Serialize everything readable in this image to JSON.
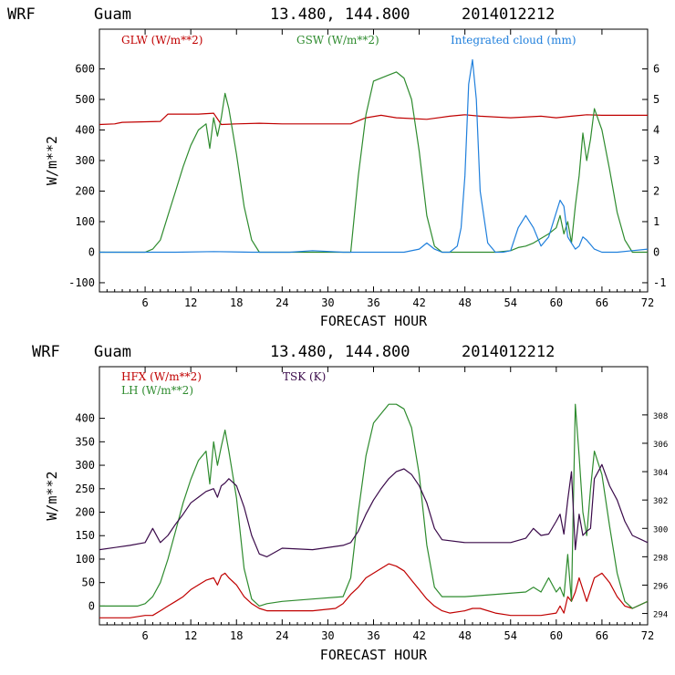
{
  "header": {
    "model": "WRF",
    "location": "Guam",
    "coords": "13.480, 144.800",
    "init": "2014012212"
  },
  "colors": {
    "red": "#c00000",
    "green": "#2e8b2e",
    "blue": "#1f7fdc",
    "purple": "#3a0a4a",
    "black": "#000000"
  },
  "chart_data": [
    {
      "type": "line",
      "title": "WRF Guam 13.480, 144.800 2014012212",
      "xlabel": "FORECAST HOUR",
      "ylabel": "W/m**2",
      "xlim": [
        0,
        72
      ],
      "ylim": [
        -130,
        730
      ],
      "y2lim": [
        -1.3,
        7.3
      ],
      "xticks": [
        6,
        12,
        18,
        24,
        30,
        36,
        42,
        48,
        54,
        60,
        66,
        72
      ],
      "yticks": [
        -100,
        0,
        100,
        200,
        300,
        400,
        500,
        600
      ],
      "y2ticks": [
        -1,
        0,
        1,
        2,
        3,
        4,
        5,
        6
      ],
      "series": [
        {
          "name": "GLW (W/m**2)",
          "color": "#c00000",
          "axis": "left",
          "x": [
            0,
            2,
            3,
            8,
            9,
            13,
            15,
            16,
            18,
            21,
            24,
            30,
            33,
            35,
            37,
            39,
            43,
            46,
            48,
            50,
            54,
            58,
            60,
            62,
            64,
            66,
            72
          ],
          "y": [
            418,
            420,
            425,
            428,
            452,
            452,
            455,
            418,
            420,
            422,
            420,
            420,
            420,
            440,
            448,
            440,
            435,
            445,
            450,
            445,
            440,
            445,
            440,
            445,
            450,
            448,
            448
          ]
        },
        {
          "name": "GSW (W/m**2)",
          "color": "#2e8b2e",
          "axis": "left",
          "x": [
            0,
            6,
            7,
            8,
            9,
            10,
            11,
            12,
            13,
            14,
            14.5,
            15,
            15.5,
            16,
            16.5,
            17,
            18,
            19,
            20,
            21,
            24,
            30,
            32,
            33,
            34,
            35,
            36,
            37,
            38,
            39,
            40,
            41,
            42,
            43,
            44,
            45,
            48,
            52,
            54,
            55,
            56,
            57,
            58,
            59,
            60,
            60.5,
            61,
            61.5,
            62,
            62.5,
            63,
            63.5,
            64,
            64.5,
            65,
            66,
            67,
            68,
            69,
            70,
            72
          ],
          "y": [
            0,
            0,
            10,
            40,
            120,
            200,
            280,
            350,
            400,
            420,
            340,
            440,
            380,
            440,
            520,
            470,
            320,
            150,
            40,
            0,
            0,
            0,
            0,
            0,
            250,
            450,
            560,
            570,
            580,
            590,
            570,
            500,
            330,
            120,
            20,
            0,
            0,
            0,
            5,
            15,
            20,
            30,
            45,
            60,
            80,
            120,
            60,
            100,
            30,
            150,
            250,
            390,
            300,
            370,
            470,
            400,
            270,
            130,
            40,
            0,
            0
          ]
        },
        {
          "name": "Integrated cloud (mm)",
          "color": "#1f7fdc",
          "axis": "right",
          "x": [
            0,
            10,
            15,
            20,
            25,
            28,
            32,
            40,
            42,
            43,
            44,
            45,
            46,
            47,
            47.5,
            48,
            48.5,
            49,
            49.5,
            50,
            51,
            52,
            53,
            54,
            55,
            56,
            57,
            58,
            59,
            60,
            60.5,
            61,
            61.5,
            62,
            62.5,
            63,
            63.5,
            64,
            65,
            66,
            68,
            70,
            72
          ],
          "y": [
            0,
            0,
            0.02,
            0,
            0,
            0.05,
            0,
            0,
            0.1,
            0.3,
            0.1,
            0,
            0,
            0.2,
            0.8,
            2.5,
            5.5,
            6.3,
            5.0,
            2.0,
            0.3,
            0,
            0,
            0.05,
            0.8,
            1.2,
            0.8,
            0.2,
            0.5,
            1.3,
            1.7,
            1.5,
            0.5,
            0.3,
            0.1,
            0.2,
            0.5,
            0.4,
            0.1,
            0,
            0,
            0.05,
            0.1
          ]
        }
      ]
    },
    {
      "type": "line",
      "title": "WRF Guam 13.480, 144.800 2014012212",
      "xlabel": "FORECAST HOUR",
      "ylabel": "W/m**2",
      "xlim": [
        0,
        72
      ],
      "ylim": [
        -40,
        510
      ],
      "y2lim": [
        293.2,
        311.4
      ],
      "xticks": [
        6,
        12,
        18,
        24,
        30,
        36,
        42,
        48,
        54,
        60,
        66,
        72
      ],
      "yticks": [
        0,
        50,
        100,
        150,
        200,
        250,
        300,
        350,
        400
      ],
      "y2ticks": [
        294,
        296,
        298,
        300,
        302,
        304,
        306,
        308
      ],
      "series": [
        {
          "name": "HFX (W/m**2)",
          "color": "#c00000",
          "axis": "left",
          "x": [
            0,
            4,
            6,
            7,
            8,
            9,
            10,
            11,
            12,
            13,
            14,
            15,
            15.5,
            16,
            16.5,
            17,
            18,
            19,
            20,
            21,
            22,
            24,
            28,
            31,
            32,
            33,
            34,
            35,
            36,
            37,
            38,
            39,
            40,
            41,
            42,
            43,
            44,
            45,
            46,
            48,
            49,
            50,
            52,
            54,
            56,
            58,
            60,
            60.5,
            61,
            61.5,
            62,
            62.5,
            63,
            64,
            65,
            66,
            67,
            68,
            69,
            70,
            72
          ],
          "y": [
            -25,
            -25,
            -20,
            -20,
            -10,
            0,
            10,
            20,
            35,
            45,
            55,
            60,
            45,
            65,
            70,
            60,
            45,
            20,
            5,
            -5,
            -10,
            -10,
            -10,
            -5,
            5,
            25,
            40,
            60,
            70,
            80,
            90,
            85,
            75,
            55,
            35,
            15,
            0,
            -10,
            -15,
            -10,
            -5,
            -5,
            -15,
            -20,
            -20,
            -20,
            -15,
            0,
            -15,
            20,
            10,
            30,
            60,
            10,
            60,
            70,
            50,
            20,
            0,
            -5,
            10
          ]
        },
        {
          "name": "LH (W/m**2)",
          "color": "#2e8b2e",
          "axis": "left",
          "x": [
            0,
            5,
            6,
            7,
            8,
            9,
            10,
            11,
            12,
            13,
            14,
            14.5,
            15,
            15.5,
            16,
            16.5,
            17,
            18,
            19,
            20,
            21,
            22,
            24,
            28,
            32,
            33,
            34,
            35,
            36,
            37,
            38,
            39,
            40,
            41,
            42,
            43,
            44,
            45,
            48,
            52,
            56,
            57,
            58,
            59,
            60,
            60.5,
            61,
            61.5,
            62,
            62.5,
            63,
            63.5,
            64,
            64.5,
            65,
            66,
            67,
            68,
            69,
            70,
            72
          ],
          "y": [
            0,
            0,
            5,
            20,
            50,
            100,
            160,
            220,
            270,
            310,
            330,
            260,
            350,
            300,
            340,
            375,
            330,
            230,
            80,
            15,
            0,
            5,
            10,
            15,
            20,
            60,
            200,
            320,
            390,
            410,
            430,
            430,
            420,
            380,
            280,
            130,
            40,
            20,
            20,
            25,
            30,
            40,
            30,
            60,
            30,
            40,
            20,
            110,
            10,
            430,
            320,
            200,
            150,
            250,
            330,
            280,
            170,
            70,
            10,
            -5,
            10
          ]
        },
        {
          "name": "TSK (K)",
          "color": "#3a0a4a",
          "axis": "right",
          "x": [
            0,
            4,
            6,
            7,
            8,
            9,
            10,
            11,
            12,
            13,
            14,
            15,
            15.5,
            16,
            16.5,
            17,
            18,
            19,
            20,
            21,
            22,
            24,
            28,
            32,
            33,
            34,
            35,
            36,
            37,
            38,
            39,
            40,
            41,
            42,
            43,
            44,
            45,
            48,
            54,
            56,
            57,
            58,
            59,
            60,
            60.5,
            61,
            61.5,
            62,
            62.5,
            63,
            63.5,
            64,
            64.5,
            65,
            66,
            67,
            68,
            69,
            70,
            72
          ],
          "y": [
            298.5,
            298.8,
            299.0,
            300.0,
            299.0,
            299.5,
            300.3,
            301.0,
            301.8,
            302.2,
            302.6,
            302.8,
            302.2,
            303.0,
            303.2,
            303.5,
            303.0,
            301.5,
            299.5,
            298.2,
            298.0,
            298.6,
            298.5,
            298.8,
            299.0,
            299.8,
            301.0,
            302.0,
            302.8,
            303.5,
            304.0,
            304.2,
            303.8,
            303.0,
            301.8,
            300.0,
            299.2,
            299.0,
            299.0,
            299.3,
            300.0,
            299.5,
            299.6,
            300.5,
            301.0,
            299.6,
            302.0,
            304.0,
            298.5,
            301.0,
            299.5,
            299.8,
            300.0,
            303.5,
            304.5,
            303.0,
            302.0,
            300.5,
            299.5,
            299.0
          ]
        }
      ]
    }
  ]
}
